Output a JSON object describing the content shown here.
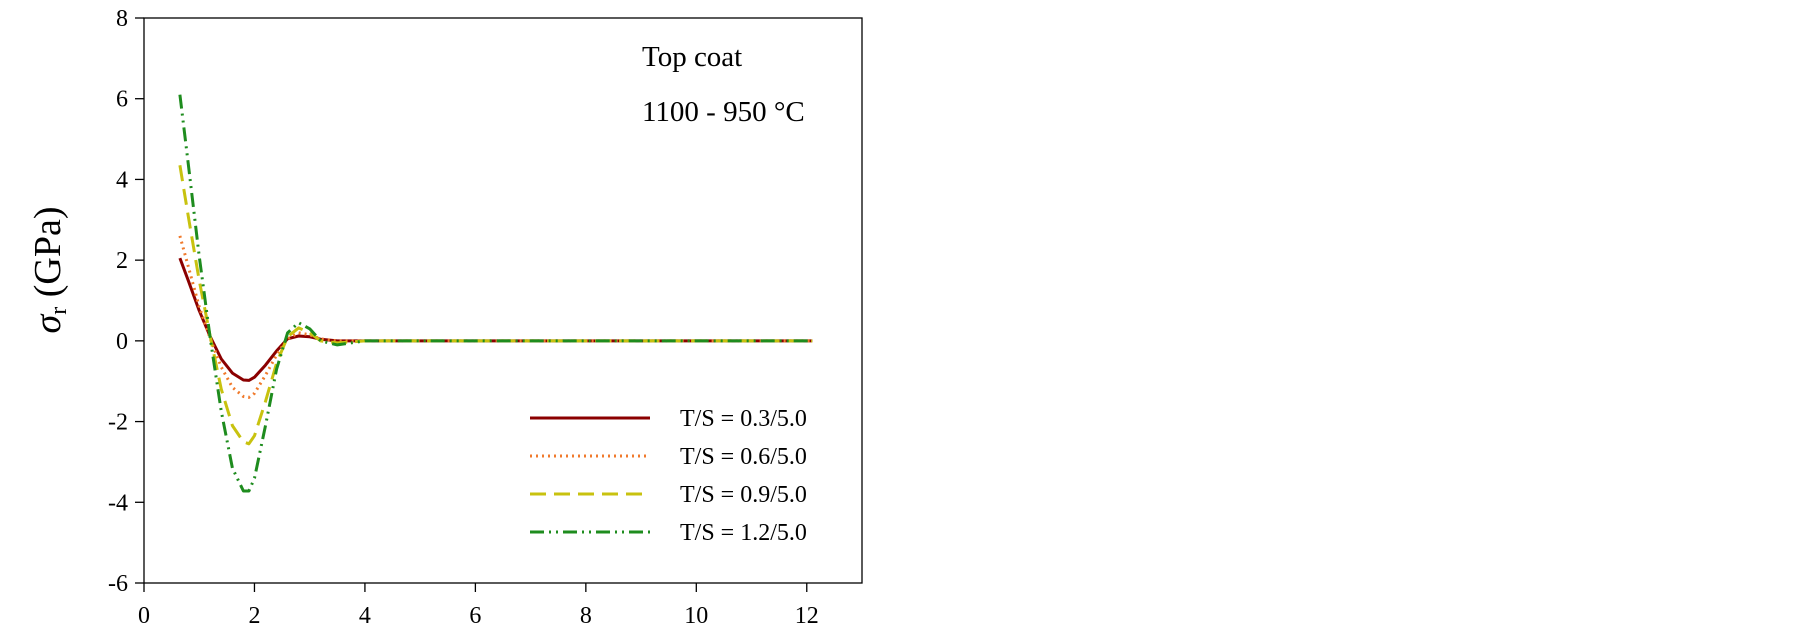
{
  "chart_data": {
    "type": "line",
    "xlabel": "",
    "ylabel": {
      "symbol": "σ",
      "subscript": "r",
      "unit": " (GPa)"
    },
    "xlim": [
      0,
      13
    ],
    "ylim": [
      -6,
      8
    ],
    "xticks": [
      0,
      2,
      4,
      6,
      8,
      10,
      12
    ],
    "yticks": [
      -6,
      -4,
      -2,
      0,
      2,
      4,
      6,
      8
    ],
    "grid": false,
    "legend_position": "bottom-right",
    "annotations": [
      "Top coat",
      "1100 - 950 °C"
    ],
    "series": [
      {
        "name": "T/S = 0.3/5.0",
        "color": "#8b0000",
        "dash": "solid",
        "x": [
          0.65,
          0.8,
          1.0,
          1.2,
          1.4,
          1.6,
          1.8,
          1.9,
          2.0,
          2.2,
          2.4,
          2.6,
          2.8,
          3.0,
          3.2,
          3.5,
          4.0,
          5.0,
          6.0,
          8.0,
          10.0,
          12.1
        ],
        "y": [
          2.05,
          1.5,
          0.75,
          0.1,
          -0.45,
          -0.8,
          -0.97,
          -0.98,
          -0.9,
          -0.6,
          -0.25,
          0.05,
          0.12,
          0.1,
          0.04,
          0.0,
          0.0,
          0.0,
          0.0,
          0.0,
          0.0,
          0.0
        ]
      },
      {
        "name": "T/S = 0.6/5.0",
        "color": "#f07a2c",
        "dash": "dotted",
        "x": [
          0.65,
          0.8,
          1.0,
          1.2,
          1.4,
          1.6,
          1.8,
          1.9,
          2.0,
          2.2,
          2.4,
          2.6,
          2.8,
          3.0,
          3.2,
          3.5,
          4.0,
          5.0,
          6.0,
          8.0,
          10.0,
          12.1
        ],
        "y": [
          2.6,
          1.85,
          0.85,
          0.05,
          -0.65,
          -1.15,
          -1.38,
          -1.4,
          -1.3,
          -0.85,
          -0.35,
          0.05,
          0.2,
          0.15,
          0.05,
          0.0,
          0.0,
          0.0,
          0.0,
          0.0,
          0.0,
          0.0
        ]
      },
      {
        "name": "T/S = 0.9/5.0",
        "color": "#c8c20f",
        "dash": "dashed",
        "x": [
          0.65,
          0.8,
          1.0,
          1.2,
          1.4,
          1.6,
          1.8,
          1.9,
          2.0,
          2.2,
          2.4,
          2.6,
          2.8,
          3.0,
          3.2,
          3.5,
          4.0,
          5.0,
          6.0,
          8.0,
          10.0,
          12.1
        ],
        "y": [
          4.35,
          3.1,
          1.5,
          0.1,
          -1.2,
          -2.1,
          -2.5,
          -2.55,
          -2.35,
          -1.5,
          -0.55,
          0.1,
          0.32,
          0.2,
          0.0,
          -0.05,
          0.0,
          0.0,
          0.0,
          0.0,
          0.0,
          0.0
        ]
      },
      {
        "name": "T/S = 1.2/5.0",
        "color": "#1e8c1e",
        "dash": "dashdotdot",
        "x": [
          0.65,
          0.8,
          1.0,
          1.2,
          1.4,
          1.6,
          1.8,
          1.9,
          2.0,
          2.2,
          2.4,
          2.6,
          2.8,
          3.0,
          3.2,
          3.5,
          4.0,
          5.0,
          6.0,
          8.0,
          10.0,
          12.1
        ],
        "y": [
          6.1,
          4.4,
          2.1,
          0.05,
          -1.75,
          -3.15,
          -3.72,
          -3.72,
          -3.4,
          -2.1,
          -0.7,
          0.2,
          0.45,
          0.3,
          0.0,
          -0.1,
          0.0,
          0.0,
          0.0,
          0.0,
          0.0,
          0.0
        ]
      }
    ]
  }
}
